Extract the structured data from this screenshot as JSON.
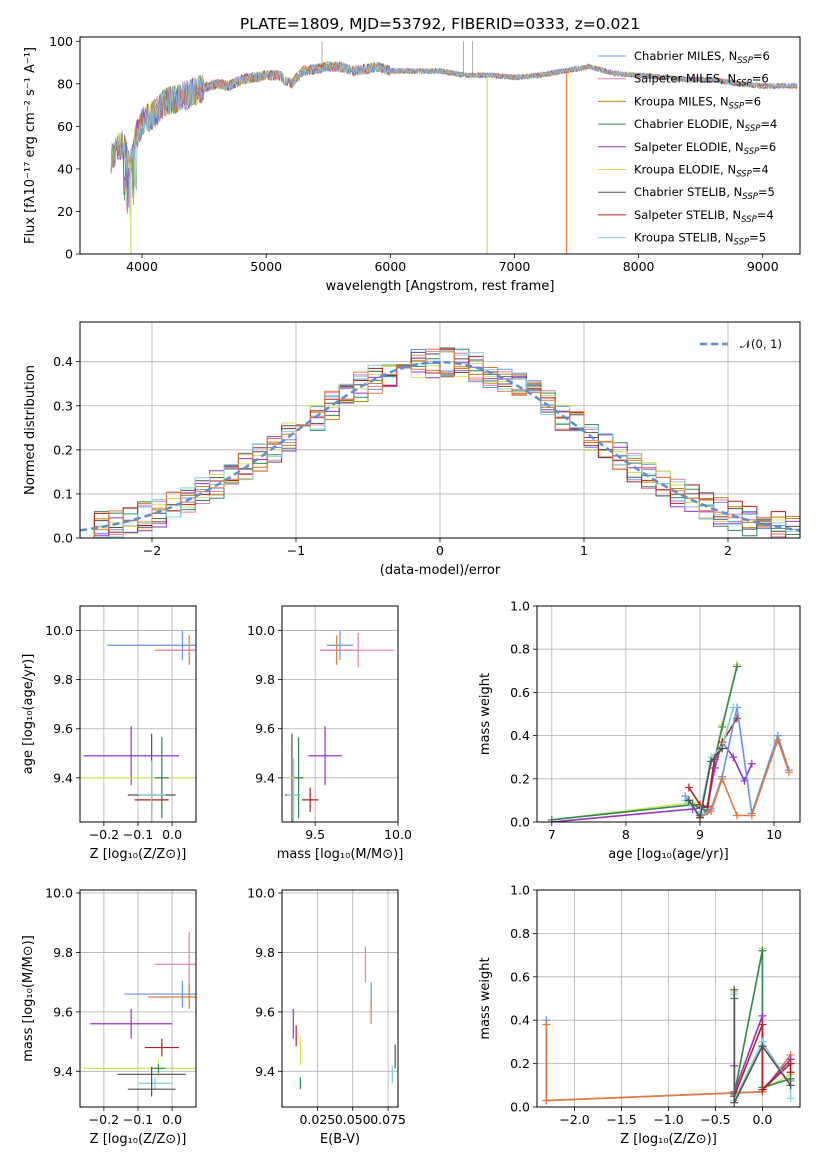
{
  "colors": {
    "Chabrier MILES": "#6495ed",
    "Salpeter MILES": "#e67eb3",
    "Kroupa MILES": "#b8860b",
    "Chabrier ELODIE": "#2e8b57",
    "Salpeter ELODIE": "#9932cc",
    "Kroupa ELODIE": "#d4e157",
    "Chabrier STELIB": "#505050",
    "Salpeter STELIB": "#b22222",
    "Kroupa STELIB": "#7fd3d9",
    "orange": "#e07b39",
    "gauss": "#5b8fd6"
  },
  "chart_data": [
    {
      "id": "spectrum",
      "type": "line",
      "title": "PLATE=1809, MJD=53792, FIBERID=0333, z=0.021",
      "xlabel": "wavelength [Angstrom, rest frame]",
      "ylabel": "Flux [fλ10⁻¹⁷ erg cm⁻² s⁻¹ A⁻¹]",
      "xlim": [
        3500,
        9300
      ],
      "ylim": [
        0,
        102
      ],
      "xticks": [
        "4000",
        "5000",
        "6000",
        "7000",
        "8000",
        "9000"
      ],
      "yticks": [
        "0",
        "20",
        "40",
        "60",
        "80",
        "100"
      ],
      "legend_position": "top-right",
      "legend": [
        {
          "model": "Chabrier MILES",
          "text": "Chabrier MILES, N",
          "sub": "SSP",
          "n": "=6"
        },
        {
          "model": "Salpeter MILES",
          "text": "Salpeter MILES, N",
          "sub": "SSP",
          "n": "=6"
        },
        {
          "model": "Kroupa MILES",
          "text": "Kroupa MILES, N",
          "sub": "SSP",
          "n": "=6"
        },
        {
          "model": "Chabrier ELODIE",
          "text": "Chabrier ELODIE, N",
          "sub": "SSP",
          "n": "=4"
        },
        {
          "model": "Salpeter ELODIE",
          "text": "Salpeter ELODIE, N",
          "sub": "SSP",
          "n": "=6"
        },
        {
          "model": "Kroupa ELODIE",
          "text": "Kroupa ELODIE, N",
          "sub": "SSP",
          "n": "=4"
        },
        {
          "model": "Chabrier STELIB",
          "text": "Chabrier STELIB, N",
          "sub": "SSP",
          "n": "=5"
        },
        {
          "model": "Salpeter STELIB",
          "text": "Salpeter STELIB, N",
          "sub": "SSP",
          "n": "=4"
        },
        {
          "model": "Kroupa STELIB",
          "text": "Kroupa STELIB, N",
          "sub": "SSP",
          "n": "=5"
        }
      ],
      "envelope": [
        [
          3750,
          45
        ],
        [
          3800,
          50
        ],
        [
          3850,
          52
        ],
        [
          3900,
          40
        ],
        [
          3950,
          55
        ],
        [
          4000,
          62
        ],
        [
          4100,
          66
        ],
        [
          4200,
          72
        ],
        [
          4300,
          73
        ],
        [
          4400,
          76
        ],
        [
          4500,
          78
        ],
        [
          4600,
          80
        ],
        [
          4700,
          79
        ],
        [
          4800,
          82
        ],
        [
          4900,
          83
        ],
        [
          5000,
          84
        ],
        [
          5100,
          84
        ],
        [
          5200,
          80
        ],
        [
          5300,
          86
        ],
        [
          5400,
          87
        ],
        [
          5500,
          88
        ],
        [
          5600,
          88
        ],
        [
          5700,
          86
        ],
        [
          5800,
          87
        ],
        [
          5900,
          88
        ],
        [
          6000,
          86
        ],
        [
          6200,
          86
        ],
        [
          6400,
          86
        ],
        [
          6600,
          84
        ],
        [
          6800,
          84
        ],
        [
          7000,
          83
        ],
        [
          7200,
          84
        ],
        [
          7400,
          86
        ],
        [
          7600,
          88
        ],
        [
          7800,
          85
        ],
        [
          8000,
          84
        ],
        [
          8200,
          83
        ],
        [
          8400,
          82
        ],
        [
          8600,
          82
        ],
        [
          8800,
          80
        ],
        [
          9000,
          79
        ],
        [
          9200,
          79
        ]
      ],
      "drops": [
        [
          3910,
          0
        ],
        [
          6780,
          0
        ],
        [
          7420,
          0
        ]
      ],
      "spikes": [
        [
          5450,
          100
        ],
        [
          6590,
          100
        ],
        [
          6660,
          100
        ]
      ]
    },
    {
      "id": "residuals",
      "type": "bar",
      "xlabel": "(data-model)/error",
      "ylabel": "Normed distribution",
      "xlim": [
        -2.5,
        2.5
      ],
      "ylim": [
        0,
        0.49
      ],
      "xticks": [
        "−2",
        "−1",
        "0",
        "1",
        "2"
      ],
      "yticks": [
        "0.0",
        "0.1",
        "0.2",
        "0.3",
        "0.4"
      ],
      "legend_position": "top-right",
      "gauss_label": "𝒩(0, 1)",
      "bin_width": 0.1
    },
    {
      "id": "age-vs-Z",
      "type": "scatter",
      "xlabel": "Z [log₁₀(Z/Z⊙)]",
      "ylabel": "age  [log₁₀(age/yr)]",
      "xlim": [
        -0.27,
        0.07
      ],
      "ylim": [
        9.22,
        10.1
      ],
      "xticks": [
        "−0.2",
        "−0.1",
        "0.0"
      ],
      "yticks": [
        "9.4",
        "9.6",
        "9.8",
        "10.0"
      ],
      "points": [
        {
          "model": "Chabrier MILES",
          "x": 0.03,
          "y": 9.94,
          "xe": 0.22,
          "ye": 0.12
        },
        {
          "model": "orange",
          "x": 0.05,
          "y": 9.92,
          "xe": 0.1,
          "ye": 0.12
        },
        {
          "model": "Salpeter MILES",
          "x": 0.05,
          "y": 9.92,
          "xe": 0.08,
          "ye": 0.05
        },
        {
          "model": "Chabrier STELIB",
          "x": -0.06,
          "y": 9.33,
          "xe": 0.07,
          "ye": 0.5
        },
        {
          "model": "Salpeter ELODIE",
          "x": -0.12,
          "y": 9.49,
          "xe": 0.14,
          "ye": 0.24
        },
        {
          "model": "Kroupa ELODIE",
          "x": -0.03,
          "y": 9.4,
          "xe": 0.24,
          "ye": 0.33
        },
        {
          "model": "Chabrier ELODIE",
          "x": -0.03,
          "y": 9.4,
          "xe": 0.02,
          "ye": 0.33
        },
        {
          "model": "Salpeter STELIB",
          "x": -0.06,
          "y": 9.31,
          "xe": 0.05,
          "ye": 0.1
        },
        {
          "model": "Kroupa STELIB",
          "x": -0.06,
          "y": 9.33,
          "xe": 0.04,
          "ye": 0.28
        }
      ]
    },
    {
      "id": "age-vs-mass",
      "type": "scatter",
      "xlabel": "mass [log₁₀(M/M⊙)]",
      "ylabel": "",
      "xlim": [
        9.3,
        10.0
      ],
      "ylim": [
        9.22,
        10.1
      ],
      "xticks": [
        "9.5",
        "10.0"
      ],
      "yticks": [
        "9.4",
        "9.6",
        "9.8",
        "10.0"
      ],
      "points": [
        {
          "model": "Chabrier MILES",
          "x": 9.65,
          "y": 9.94,
          "xe": 0.08,
          "ye": 0.12
        },
        {
          "model": "orange",
          "x": 9.63,
          "y": 9.92,
          "xe": 0.1,
          "ye": 0.12
        },
        {
          "model": "Salpeter MILES",
          "x": 9.76,
          "y": 9.92,
          "xe": 0.22,
          "ye": 0.14
        },
        {
          "model": "Chabrier STELIB",
          "x": 9.36,
          "y": 9.33,
          "xe": 0.04,
          "ye": 0.5
        },
        {
          "model": "Salpeter ELODIE",
          "x": 9.56,
          "y": 9.49,
          "xe": 0.1,
          "ye": 0.24
        },
        {
          "model": "Kroupa ELODIE",
          "x": 9.4,
          "y": 9.4,
          "xe": 0.06,
          "ye": 0.33
        },
        {
          "model": "Chabrier ELODIE",
          "x": 9.4,
          "y": 9.4,
          "xe": 0.03,
          "ye": 0.33
        },
        {
          "model": "Salpeter STELIB",
          "x": 9.47,
          "y": 9.31,
          "xe": 0.05,
          "ye": 0.1
        },
        {
          "model": "Kroupa STELIB",
          "x": 9.37,
          "y": 9.33,
          "xe": 0.04,
          "ye": 0.3
        }
      ]
    },
    {
      "id": "mass-weight-vs-age",
      "type": "line",
      "xlabel": "age  [log₁₀(age/yr)]",
      "ylabel": "mass weight",
      "xlim": [
        6.8,
        10.35
      ],
      "ylim": [
        0,
        1.0
      ],
      "xticks": [
        "7",
        "8",
        "9",
        "10"
      ],
      "yticks": [
        "0.0",
        "0.2",
        "0.4",
        "0.6",
        "0.8",
        "1.0"
      ],
      "series": [
        {
          "model": "Kroupa ELODIE",
          "x": [
            7.0,
            8.9,
            9.1,
            9.2,
            9.3,
            9.5
          ],
          "y": [
            0.01,
            0.09,
            0.06,
            0.3,
            0.45,
            0.73
          ]
        },
        {
          "model": "Chabrier ELODIE",
          "x": [
            7.0,
            8.9,
            9.1,
            9.2,
            9.3,
            9.5
          ],
          "y": [
            0.01,
            0.08,
            0.05,
            0.29,
            0.44,
            0.72
          ]
        },
        {
          "model": "Salpeter ELODIE",
          "x": [
            7.0,
            8.9,
            9.1,
            9.2,
            9.3,
            9.45,
            9.6,
            9.7
          ],
          "y": [
            0.0,
            0.06,
            0.07,
            0.25,
            0.37,
            0.3,
            0.19,
            0.27
          ]
        },
        {
          "model": "Salpeter STELIB",
          "x": [
            8.85,
            9.0,
            9.1,
            9.2,
            9.3,
            9.5
          ],
          "y": [
            0.16,
            0.08,
            0.07,
            0.3,
            0.37,
            0.48
          ]
        },
        {
          "model": "Chabrier MILES",
          "x": [
            8.8,
            9.0,
            9.15,
            9.3,
            9.5,
            9.7,
            10.05,
            10.2
          ],
          "y": [
            0.12,
            0.03,
            0.06,
            0.21,
            0.53,
            0.04,
            0.4,
            0.24
          ]
        },
        {
          "model": "orange",
          "x": [
            8.85,
            9.0,
            9.15,
            9.3,
            9.5,
            9.7,
            10.05,
            10.2
          ],
          "y": [
            0.1,
            0.02,
            0.05,
            0.2,
            0.03,
            0.03,
            0.38,
            0.23
          ]
        },
        {
          "model": "Kroupa STELIB",
          "x": [
            8.8,
            9.0,
            9.15,
            9.3,
            9.45
          ],
          "y": [
            0.1,
            0.04,
            0.3,
            0.35,
            0.53
          ]
        },
        {
          "model": "Chabrier STELIB",
          "x": [
            8.85,
            9.0,
            9.15,
            9.3
          ],
          "y": [
            0.1,
            0.02,
            0.28,
            0.34
          ]
        }
      ]
    },
    {
      "id": "mass-vs-Z",
      "type": "scatter",
      "xlabel": "Z [log₁₀(Z/Z⊙)]",
      "ylabel": "mass [log₁₀(M/M⊙)]",
      "xlim": [
        -0.27,
        0.07
      ],
      "ylim": [
        9.28,
        10.01
      ],
      "xticks": [
        "−0.2",
        "−0.1",
        "0.0"
      ],
      "yticks": [
        "9.4",
        "9.6",
        "9.8",
        "10.0"
      ],
      "points": [
        {
          "model": "Salpeter MILES",
          "x": 0.05,
          "y": 9.76,
          "xe": 0.1,
          "ye": 0.22
        },
        {
          "model": "Chabrier MILES",
          "x": 0.03,
          "y": 9.66,
          "xe": 0.17,
          "ye": 0.09
        },
        {
          "model": "orange",
          "x": 0.05,
          "y": 9.65,
          "xe": 0.12,
          "ye": 0.08
        },
        {
          "model": "Salpeter ELODIE",
          "x": -0.12,
          "y": 9.56,
          "xe": 0.12,
          "ye": 0.1
        },
        {
          "model": "Salpeter STELIB",
          "x": -0.03,
          "y": 9.48,
          "xe": 0.05,
          "ye": 0.06
        },
        {
          "model": "Kroupa ELODIE",
          "x": -0.04,
          "y": 9.41,
          "xe": 0.22,
          "ye": 0.06
        },
        {
          "model": "Chabrier ELODIE",
          "x": -0.04,
          "y": 9.41,
          "xe": 0.02,
          "ye": 0.03
        },
        {
          "model": "Chabrier STELIB",
          "x": -0.06,
          "y": 9.39,
          "xe": 0.1,
          "ye": 0.05
        },
        {
          "model": "Kroupa STELIB",
          "x": -0.05,
          "y": 9.36,
          "xe": 0.05,
          "ye": 0.04
        },
        {
          "model": "Chabrier STELIB",
          "x": -0.06,
          "y": 9.34,
          "xe": 0.07,
          "ye": 0.05
        }
      ]
    },
    {
      "id": "mass-vs-EBV",
      "type": "scatter",
      "xlabel": "E(B-V)",
      "ylabel": "",
      "xlim": [
        0.0,
        0.082
      ],
      "ylim": [
        9.28,
        10.01
      ],
      "xticks": [
        "0.025",
        "0.050",
        "0.075"
      ],
      "yticks": [
        "9.4",
        "9.6",
        "9.8",
        "10.0"
      ],
      "points": [
        {
          "model": "Salpeter MILES",
          "x": 0.059,
          "y": 9.76,
          "xe": 0.0,
          "ye": 0.12
        },
        {
          "model": "Chabrier MILES",
          "x": 0.063,
          "y": 9.66,
          "xe": 0.0,
          "ye": 0.08
        },
        {
          "model": "orange",
          "x": 0.063,
          "y": 9.6,
          "xe": 0.0,
          "ye": 0.08
        },
        {
          "model": "Salpeter ELODIE",
          "x": 0.008,
          "y": 9.56,
          "xe": 0.0,
          "ye": 0.1
        },
        {
          "model": "Salpeter STELIB",
          "x": 0.01,
          "y": 9.52,
          "xe": 0.0,
          "ye": 0.07
        },
        {
          "model": "Kroupa ELODIE",
          "x": 0.013,
          "y": 9.47,
          "xe": 0.0,
          "ye": 0.1
        },
        {
          "model": "Chabrier ELODIE",
          "x": 0.013,
          "y": 9.36,
          "xe": 0.0,
          "ye": 0.04
        },
        {
          "model": "Chabrier STELIB",
          "x": 0.08,
          "y": 9.45,
          "xe": 0.0,
          "ye": 0.08
        },
        {
          "model": "Kroupa STELIB",
          "x": 0.078,
          "y": 9.39,
          "xe": 0.0,
          "ye": 0.06
        }
      ]
    },
    {
      "id": "mass-weight-vs-Z",
      "type": "line",
      "xlabel": "Z [log₁₀(Z/Z⊙)]",
      "ylabel": "mass weight",
      "xlim": [
        -2.4,
        0.4
      ],
      "ylim": [
        0,
        1.0
      ],
      "xticks": [
        "−2.0",
        "−1.5",
        "−1.0",
        "−0.5",
        "0.0"
      ],
      "yticks": [
        "0.0",
        "0.2",
        "0.4",
        "0.6",
        "0.8",
        "1.0"
      ],
      "series": [
        {
          "model": "Chabrier MILES",
          "x": [
            -2.3,
            -2.3,
            0.0,
            0.3,
            0.3
          ],
          "y": [
            0.4,
            0.03,
            0.07,
            0.22,
            0.13
          ]
        },
        {
          "model": "orange",
          "x": [
            -2.3,
            -2.3,
            0.0,
            0.3,
            0.3
          ],
          "y": [
            0.38,
            0.03,
            0.07,
            0.24,
            0.12
          ]
        },
        {
          "model": "Kroupa ELODIE",
          "x": [
            -0.3,
            -0.3,
            0.0,
            0.0,
            0.3
          ],
          "y": [
            0.53,
            0.05,
            0.73,
            0.08,
            0.15
          ]
        },
        {
          "model": "Chabrier ELODIE",
          "x": [
            -0.3,
            -0.3,
            0.0,
            0.0,
            0.3
          ],
          "y": [
            0.5,
            0.06,
            0.72,
            0.09,
            0.13
          ]
        },
        {
          "model": "Salpeter ELODIE",
          "x": [
            -0.3,
            -0.3,
            0.0,
            0.0,
            0.3
          ],
          "y": [
            0.19,
            0.07,
            0.42,
            0.08,
            0.22
          ]
        },
        {
          "model": "Salpeter STELIB",
          "x": [
            -0.3,
            0.0,
            0.0,
            0.3,
            0.3
          ],
          "y": [
            0.05,
            0.38,
            0.08,
            0.2,
            0.16
          ]
        },
        {
          "model": "Kroupa STELIB",
          "x": [
            -0.3,
            -0.3,
            0.0,
            0.3,
            0.3
          ],
          "y": [
            0.52,
            0.03,
            0.3,
            0.1,
            0.04
          ]
        },
        {
          "model": "Chabrier STELIB",
          "x": [
            -0.3,
            -0.3,
            0.0,
            0.3
          ],
          "y": [
            0.54,
            0.02,
            0.28,
            0.1
          ]
        }
      ]
    }
  ]
}
